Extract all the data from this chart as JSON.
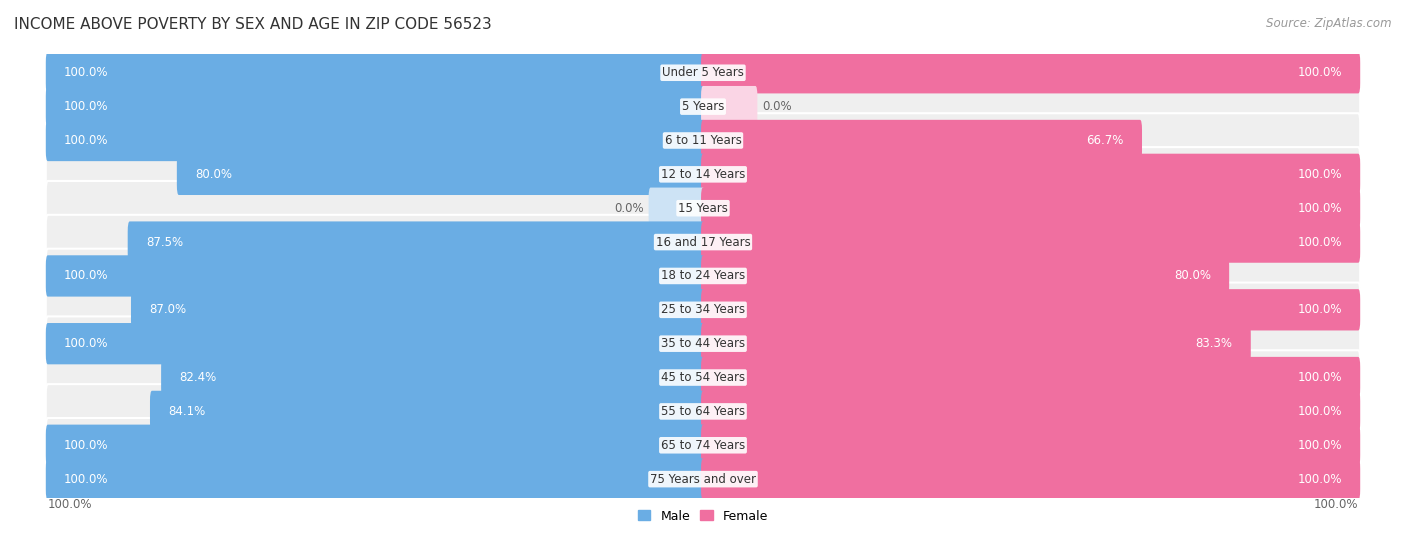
{
  "title": "INCOME ABOVE POVERTY BY SEX AND AGE IN ZIP CODE 56523",
  "source": "Source: ZipAtlas.com",
  "categories": [
    "Under 5 Years",
    "5 Years",
    "6 to 11 Years",
    "12 to 14 Years",
    "15 Years",
    "16 and 17 Years",
    "18 to 24 Years",
    "25 to 34 Years",
    "35 to 44 Years",
    "45 to 54 Years",
    "55 to 64 Years",
    "65 to 74 Years",
    "75 Years and over"
  ],
  "male": [
    100.0,
    100.0,
    100.0,
    80.0,
    0.0,
    87.5,
    100.0,
    87.0,
    100.0,
    82.4,
    84.1,
    100.0,
    100.0
  ],
  "female": [
    100.0,
    0.0,
    66.7,
    100.0,
    100.0,
    100.0,
    80.0,
    100.0,
    83.3,
    100.0,
    100.0,
    100.0,
    100.0
  ],
  "male_color": "#6aade4",
  "female_color": "#f06fa0",
  "male_zero_color": "#cde3f5",
  "female_zero_color": "#fad5e5",
  "row_bg_color": "#efefef",
  "title_fontsize": 11,
  "source_fontsize": 8.5,
  "bar_fontsize": 8.5,
  "category_fontsize": 8.5,
  "bar_height": 0.62
}
